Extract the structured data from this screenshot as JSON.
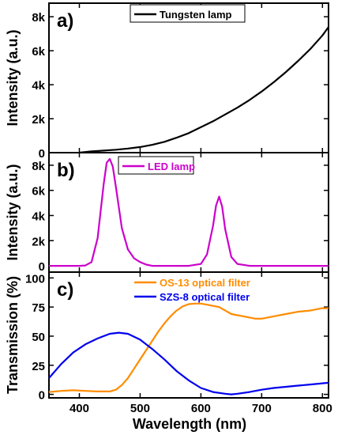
{
  "figure": {
    "x_axis_label": "Wavelength (nm)"
  },
  "chart_data": [
    {
      "type": "line",
      "panel_label": "a)",
      "ylabel": "Intensity (a.u.)",
      "xlim": [
        350,
        810
      ],
      "ylim": [
        0,
        8800
      ],
      "y_ticks": [
        0,
        2000,
        4000,
        6000,
        8000
      ],
      "y_tick_labels": [
        "0",
        "2k",
        "4k",
        "6k",
        "8k"
      ],
      "legend": "top-center",
      "series": [
        {
          "name": "Tungsten lamp",
          "color": "#000000",
          "x": [
            400,
            420,
            440,
            460,
            480,
            500,
            520,
            540,
            560,
            580,
            600,
            620,
            640,
            660,
            680,
            700,
            720,
            740,
            760,
            780,
            800,
            810
          ],
          "y": [
            0,
            80,
            120,
            170,
            240,
            330,
            460,
            640,
            880,
            1150,
            1500,
            1850,
            2250,
            2650,
            3100,
            3600,
            4150,
            4750,
            5400,
            6100,
            6900,
            7400
          ]
        }
      ]
    },
    {
      "type": "line",
      "panel_label": "b)",
      "ylabel": "Intensity (a.u.)",
      "xlim": [
        350,
        810
      ],
      "ylim": [
        -500,
        9000
      ],
      "y_ticks": [
        0,
        2000,
        4000,
        6000,
        8000
      ],
      "y_tick_labels": [
        "0",
        "2k",
        "4k",
        "6k",
        "8k"
      ],
      "legend": "top-center",
      "series": [
        {
          "name": "LED lamp",
          "color": "#cc00cc",
          "x": [
            350,
            400,
            410,
            420,
            430,
            440,
            445,
            450,
            455,
            460,
            470,
            480,
            490,
            500,
            510,
            520,
            580,
            600,
            610,
            620,
            625,
            630,
            635,
            640,
            650,
            660,
            680,
            700,
            750,
            810
          ],
          "y": [
            0,
            0,
            30,
            300,
            2200,
            6500,
            8200,
            8500,
            7900,
            6300,
            3000,
            1300,
            600,
            300,
            100,
            0,
            0,
            150,
            900,
            3200,
            4800,
            5500,
            4700,
            2900,
            700,
            150,
            0,
            0,
            0,
            0
          ]
        }
      ]
    },
    {
      "type": "line",
      "panel_label": "c)",
      "ylabel": "Transmission (%)",
      "xlim": [
        350,
        810
      ],
      "ylim": [
        -3,
        105
      ],
      "y_ticks": [
        0,
        25,
        50,
        75,
        100
      ],
      "y_tick_labels": [
        "0",
        "25",
        "50",
        "75",
        "100"
      ],
      "legend": "top-center",
      "series": [
        {
          "name": "OS-13 optical filter",
          "color": "#ff8c00",
          "x": [
            350,
            370,
            390,
            410,
            430,
            450,
            460,
            470,
            480,
            490,
            500,
            510,
            520,
            530,
            540,
            550,
            560,
            570,
            580,
            590,
            600,
            610,
            620,
            630,
            640,
            650,
            660,
            670,
            680,
            690,
            700,
            720,
            740,
            760,
            780,
            800,
            810
          ],
          "y": [
            2,
            3,
            3.5,
            3,
            2.5,
            2.5,
            4,
            8,
            14,
            22,
            30,
            38,
            46,
            54,
            61,
            67,
            72,
            75.5,
            77.5,
            78,
            78,
            77,
            76,
            75,
            72,
            69,
            68,
            67,
            66,
            65,
            65,
            67,
            69,
            71,
            72,
            74,
            74
          ]
        },
        {
          "name": "SZS-8 optical filter",
          "color": "#0000ee",
          "x": [
            350,
            370,
            390,
            410,
            430,
            450,
            465,
            480,
            500,
            520,
            540,
            560,
            580,
            600,
            620,
            640,
            650,
            660,
            680,
            700,
            720,
            740,
            760,
            780,
            800,
            810
          ],
          "y": [
            14,
            26,
            36,
            43,
            48,
            52,
            53,
            52,
            47,
            39,
            30,
            20,
            12,
            5.5,
            2,
            0.5,
            0,
            0.5,
            2,
            4,
            5.5,
            6.5,
            7.5,
            8.5,
            9.5,
            10
          ]
        }
      ]
    }
  ]
}
